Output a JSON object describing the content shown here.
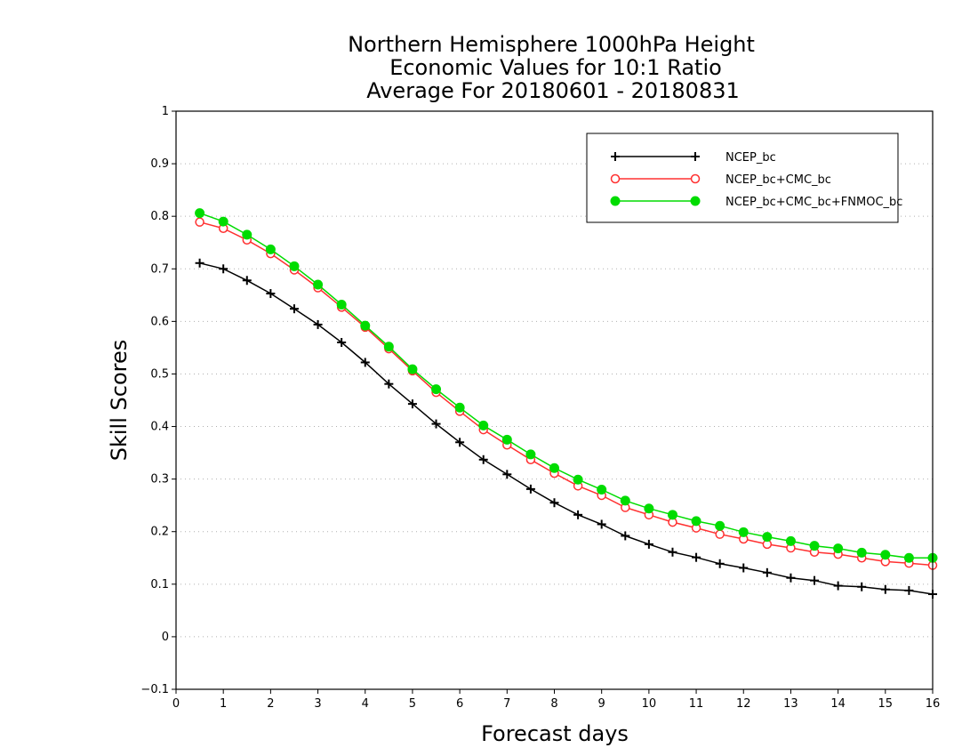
{
  "chart_data": {
    "type": "line",
    "title": [
      "Northern Hemisphere 1000hPa Height",
      "Economic Values for 10:1 Ratio",
      "Average For 20180601 - 20180831"
    ],
    "xlabel": "Forecast days",
    "ylabel": "Skill Scores",
    "xlim": [
      0,
      16
    ],
    "ylim": [
      -0.1,
      1
    ],
    "xticks": [
      "0",
      "1",
      "2",
      "3",
      "4",
      "5",
      "6",
      "7",
      "8",
      "9",
      "10",
      "11",
      "12",
      "13",
      "14",
      "15",
      "16"
    ],
    "yticks": [
      "-0.1",
      "0",
      "0.1",
      "0.2",
      "0.3",
      "0.4",
      "0.5",
      "0.6",
      "0.7",
      "0.8",
      "0.9",
      "1"
    ],
    "grid": true,
    "legend_position": "top-right",
    "x": [
      0.5,
      1,
      1.5,
      2,
      2.5,
      3,
      3.5,
      4,
      4.5,
      5,
      5.5,
      6,
      6.5,
      7,
      7.5,
      8,
      8.5,
      9,
      9.5,
      10,
      10.5,
      11,
      11.5,
      12,
      12.5,
      13,
      13.5,
      14,
      14.5,
      15,
      15.5,
      16
    ],
    "series": [
      {
        "name": "NCEP_bc",
        "color": "#000000",
        "marker": "plus",
        "values": [
          0.711,
          0.7,
          0.678,
          0.653,
          0.624,
          0.594,
          0.56,
          0.522,
          0.481,
          0.443,
          0.405,
          0.37,
          0.337,
          0.309,
          0.281,
          0.255,
          0.232,
          0.214,
          0.192,
          0.176,
          0.161,
          0.151,
          0.139,
          0.131,
          0.122,
          0.112,
          0.107,
          0.097,
          0.095,
          0.09,
          0.088,
          0.081
        ]
      },
      {
        "name": "NCEP_bc+CMC_bc",
        "color": "#ff3030",
        "marker": "open-circle",
        "values": [
          0.789,
          0.777,
          0.755,
          0.729,
          0.698,
          0.664,
          0.627,
          0.589,
          0.548,
          0.506,
          0.465,
          0.429,
          0.394,
          0.365,
          0.337,
          0.311,
          0.287,
          0.269,
          0.246,
          0.232,
          0.218,
          0.207,
          0.195,
          0.186,
          0.176,
          0.169,
          0.161,
          0.157,
          0.15,
          0.143,
          0.14,
          0.136
        ]
      },
      {
        "name": "NCEP_bc+CMC_bc+FNMOC_bc",
        "color": "#00dc00",
        "marker": "filled-circle",
        "values": [
          0.806,
          0.79,
          0.765,
          0.737,
          0.705,
          0.67,
          0.632,
          0.592,
          0.552,
          0.509,
          0.471,
          0.436,
          0.402,
          0.375,
          0.347,
          0.321,
          0.299,
          0.28,
          0.259,
          0.244,
          0.232,
          0.22,
          0.211,
          0.199,
          0.19,
          0.182,
          0.173,
          0.168,
          0.16,
          0.156,
          0.15,
          0.15
        ]
      }
    ]
  }
}
